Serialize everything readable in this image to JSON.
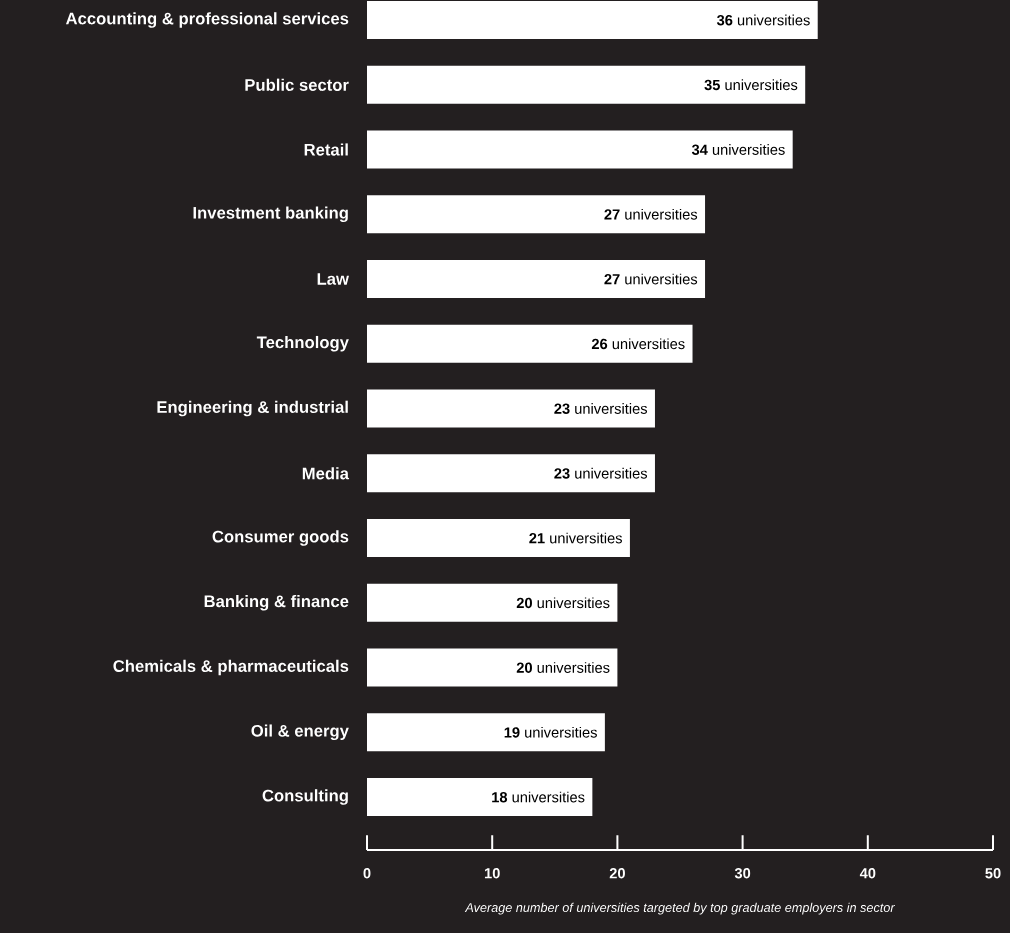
{
  "chart_data": {
    "type": "bar",
    "orientation": "horizontal",
    "xlabel": "Average number of universities targeted by top graduate employers in sector",
    "categories": [
      "Accounting & professional services",
      "Public sector",
      "Retail",
      "Investment banking",
      "Law",
      "Technology",
      "Engineering & industrial",
      "Media",
      "Consumer goods",
      "Banking & finance",
      "Chemicals & pharmaceuticals",
      "Oil & energy",
      "Consulting"
    ],
    "values": [
      36,
      35,
      34,
      27,
      27,
      26,
      23,
      23,
      21,
      20,
      20,
      19,
      18
    ],
    "value_labels": [
      "**36** universities",
      "**35** universities",
      "**34** universities",
      "**27** universities",
      "**27** universities",
      "**26** universities",
      "**23** universities",
      "**23** universities",
      "**21** universities",
      "**20** universities",
      "**20** universities",
      "**19** universities",
      "**18** universities"
    ],
    "color": "#ffffff",
    "xlim": [
      0,
      50
    ],
    "xticks": [
      0,
      10,
      20,
      30,
      40,
      50
    ]
  }
}
